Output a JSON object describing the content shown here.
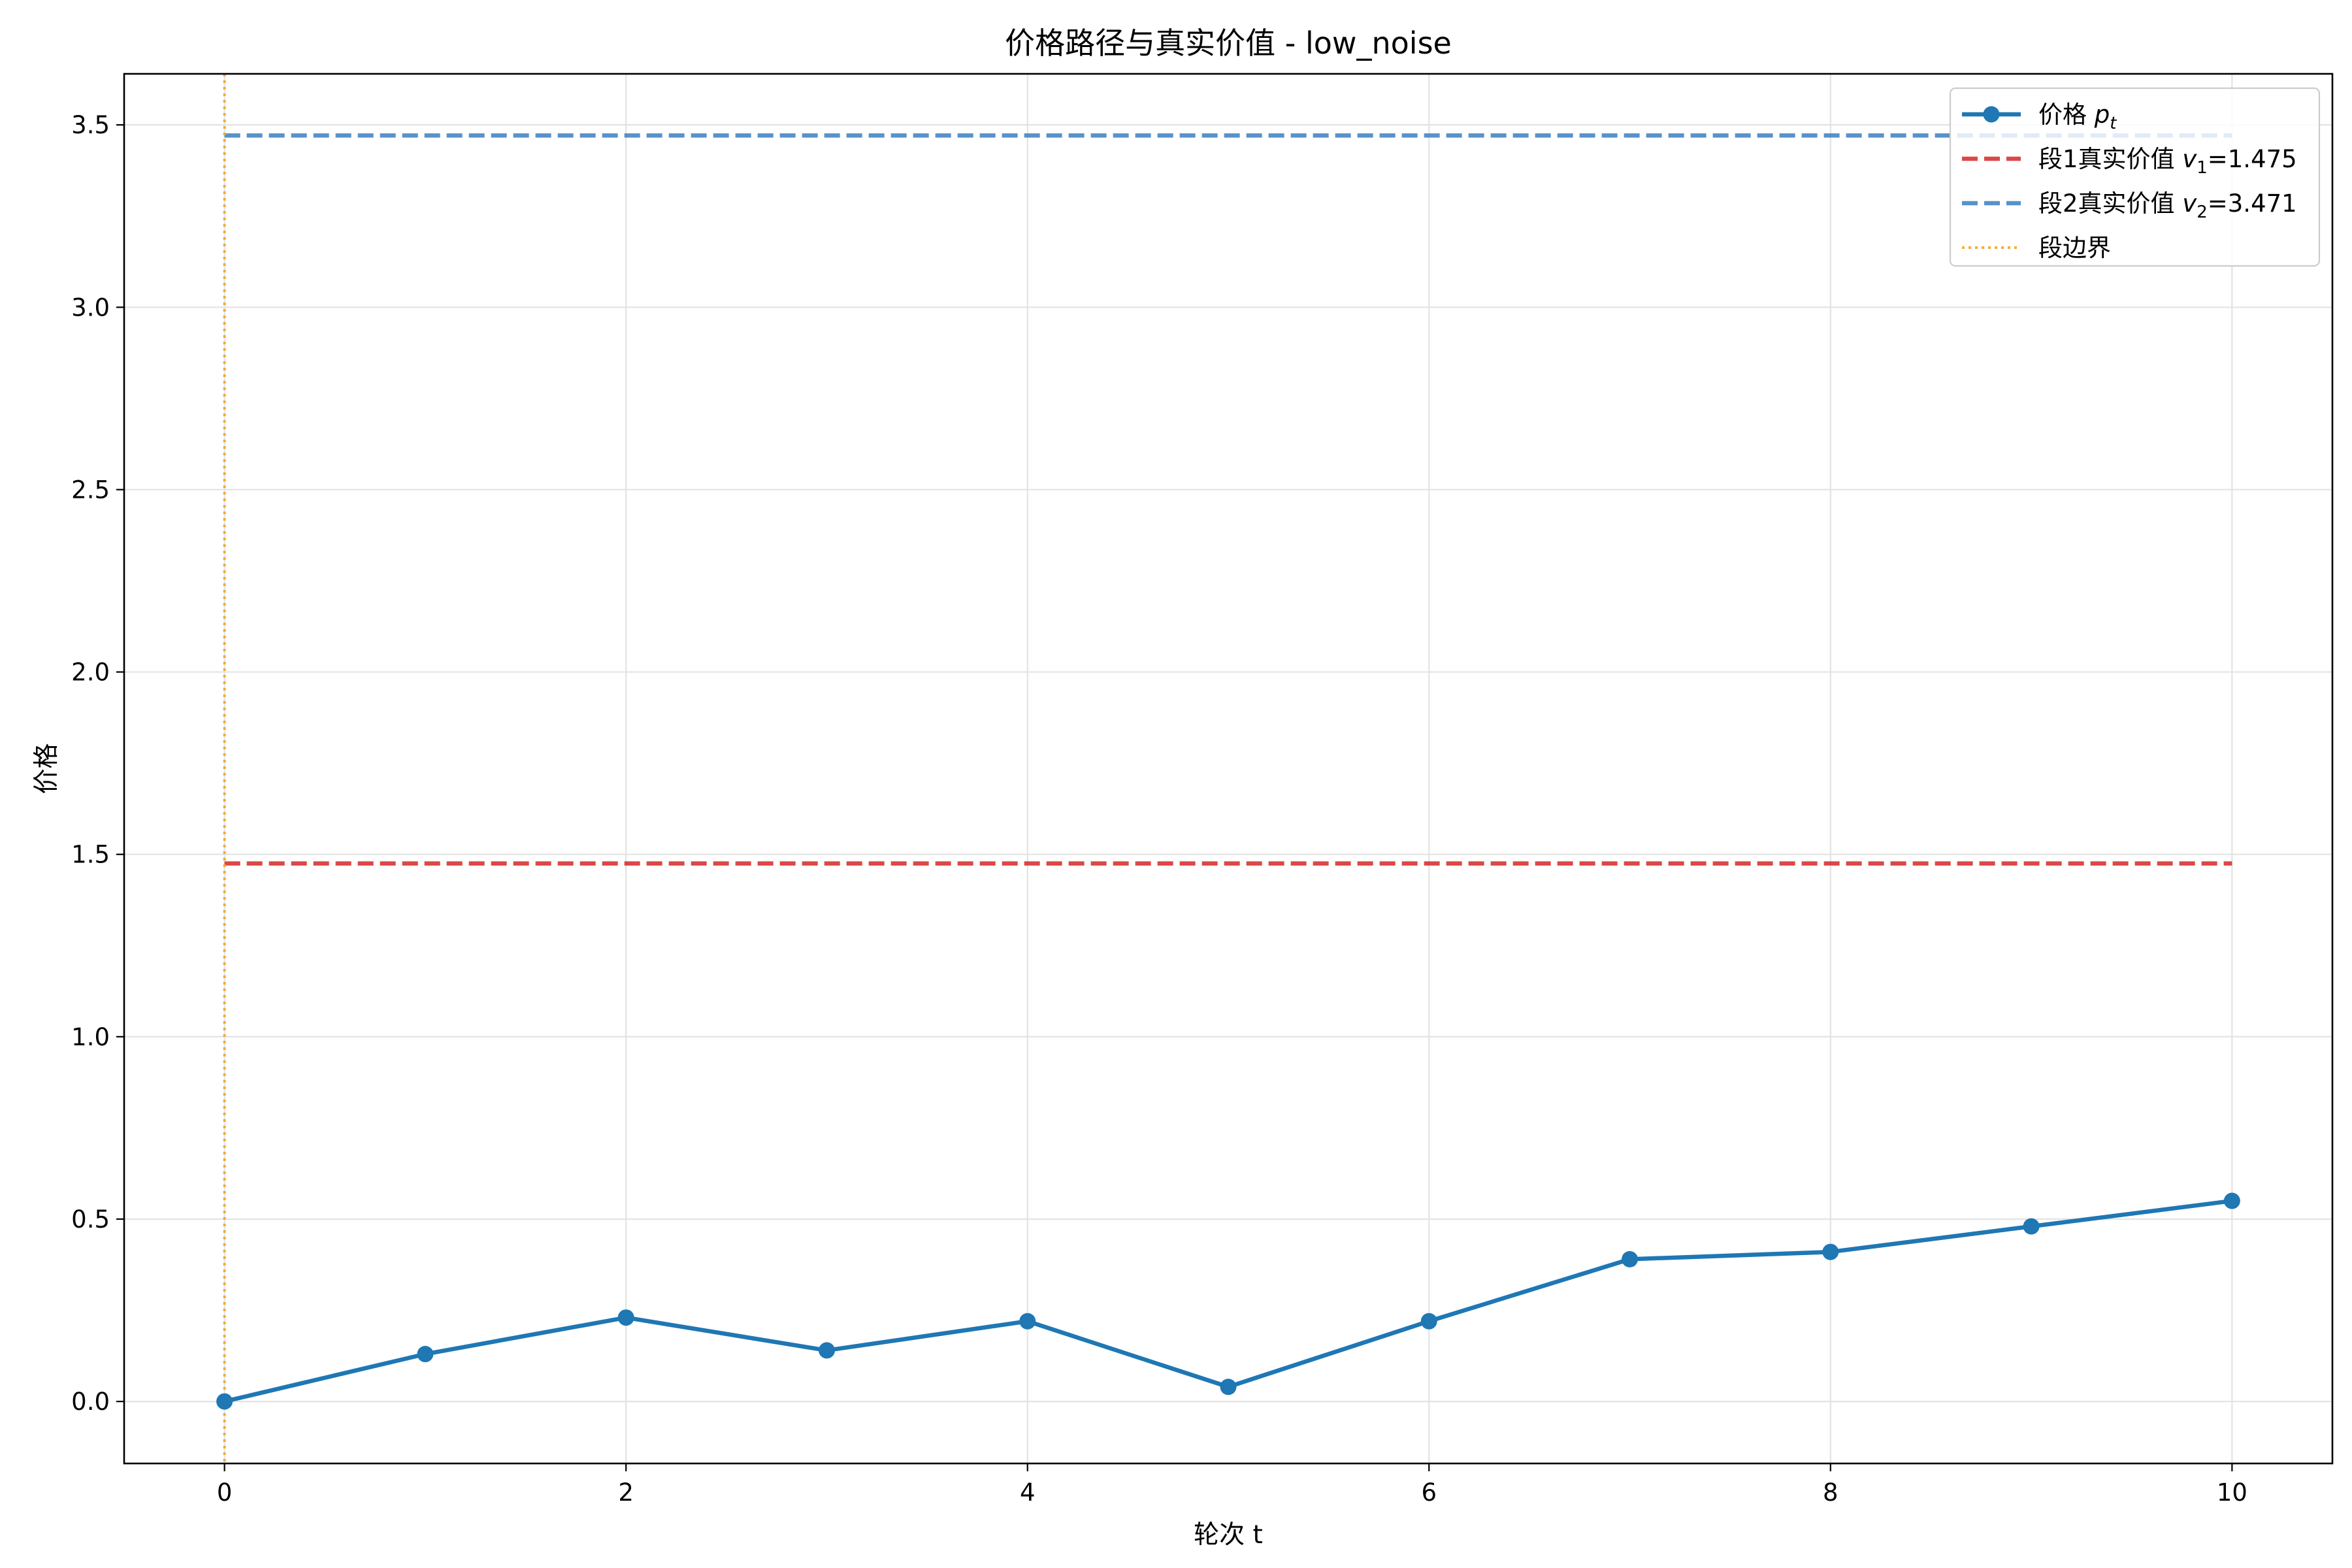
{
  "chart_data": {
    "type": "line",
    "title": "价格路径与真实价值 - low_noise",
    "xlabel": "轮次 t",
    "ylabel": "价格",
    "xlim": [
      -0.5,
      10.5
    ],
    "ylim": [
      -0.17,
      3.64
    ],
    "xticks": [
      0,
      2,
      4,
      6,
      8,
      10
    ],
    "xtick_labels": [
      "0",
      "2",
      "4",
      "6",
      "8",
      "10"
    ],
    "yticks": [
      0.0,
      0.5,
      1.0,
      1.5,
      2.0,
      2.5,
      3.0,
      3.5
    ],
    "ytick_labels": [
      "0.0",
      "0.5",
      "1.0",
      "1.5",
      "2.0",
      "2.5",
      "3.0",
      "3.5"
    ],
    "grid": true,
    "legend_position": "top-right",
    "series": [
      {
        "name": "价格 p_t",
        "legend_label": "价格",
        "legend_symbol": "p",
        "legend_subscript": "t",
        "style": "line-marker",
        "color": "#1f77b4",
        "x": [
          0,
          1,
          2,
          3,
          4,
          5,
          6,
          7,
          8,
          9,
          10
        ],
        "y": [
          0.0,
          0.13,
          0.23,
          0.14,
          0.22,
          0.04,
          0.22,
          0.39,
          0.41,
          0.48,
          0.55
        ]
      },
      {
        "name": "段1真实价值 v_1=1.475",
        "legend_label": "段1真实价值",
        "legend_symbol": "v",
        "legend_subscript": "1",
        "legend_suffix": "=1.475",
        "style": "dashed-hline",
        "color": "#d62728",
        "x_range": [
          0,
          10
        ],
        "value": 1.475
      },
      {
        "name": "段2真实价值 v_2=3.471",
        "legend_label": "段2真实价值",
        "legend_symbol": "v",
        "legend_subscript": "2",
        "legend_suffix": "=3.471",
        "style": "dashed-hline",
        "color": "#3a7fc1",
        "x_range": [
          0,
          10
        ],
        "value": 3.471
      },
      {
        "name": "段边界",
        "legend_label": "段边界",
        "style": "dotted-vline",
        "color": "#f5a623",
        "x": 0
      }
    ]
  }
}
